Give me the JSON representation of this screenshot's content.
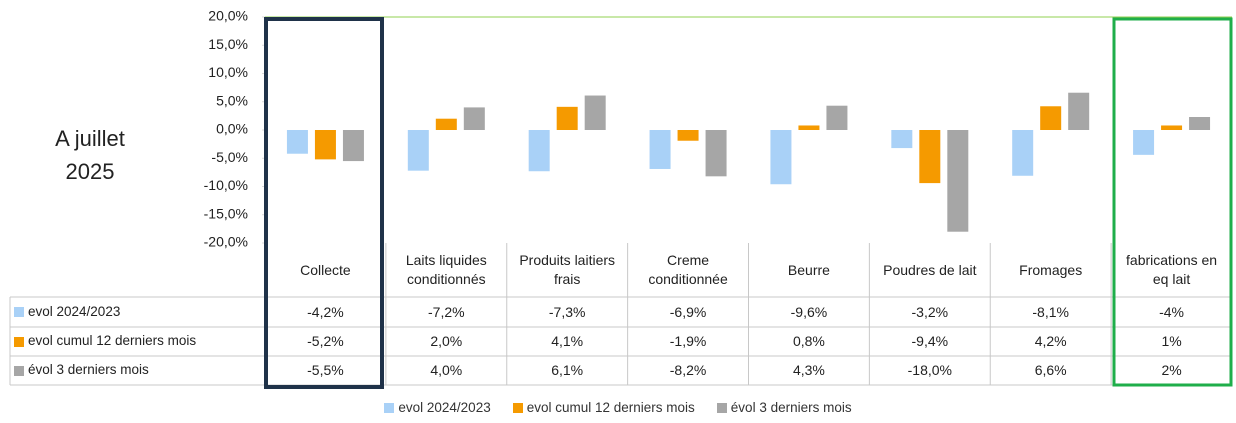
{
  "chart_data": {
    "type": "bar",
    "annotation": "A juillet 2025",
    "categories": [
      "Collecte",
      "Laits liquides conditionnés",
      "Produits laitiers frais",
      "Creme conditionnée",
      "Beurre",
      "Poudres de lait",
      "Fromages",
      "fabrications en eq lait"
    ],
    "series": [
      {
        "name": "evol 2024/2023",
        "color": "#a9d1f7",
        "values": [
          -4.2,
          -7.2,
          -7.3,
          -6.9,
          -9.6,
          -3.2,
          -8.1,
          -4.4
        ],
        "value_labels": [
          "-4,2%",
          "-7,2%",
          "-7,3%",
          "-6,9%",
          "-9,6%",
          "-3,2%",
          "-8,1%",
          "-4%"
        ]
      },
      {
        "name": "evol cumul  12 derniers mois",
        "color": "#f59a00",
        "values": [
          -5.2,
          2.0,
          4.1,
          -1.9,
          0.8,
          -9.4,
          4.2,
          0.8
        ],
        "value_labels": [
          "-5,2%",
          "2,0%",
          "4,1%",
          "-1,9%",
          "0,8%",
          "-9,4%",
          "4,2%",
          "1%"
        ]
      },
      {
        "name": "évol 3 derniers mois",
        "color": "#a6a6a6",
        "values": [
          -5.5,
          4.0,
          6.1,
          -8.2,
          4.3,
          -18.0,
          6.6,
          2.3
        ],
        "value_labels": [
          "-5,5%",
          "4,0%",
          "6,1%",
          "-8,2%",
          "4,3%",
          "-18,0%",
          "6,6%",
          "2%"
        ]
      }
    ],
    "ylim": [
      -20,
      20
    ],
    "yticks": [
      {
        "value": 20,
        "label": "20,0%"
      },
      {
        "value": 15,
        "label": "15,0%"
      },
      {
        "value": 10,
        "label": "10,0%"
      },
      {
        "value": 5,
        "label": "5,0%"
      },
      {
        "value": 0,
        "label": "0,0%"
      },
      {
        "value": -5,
        "label": "-5,0%"
      },
      {
        "value": -10,
        "label": "-10,0%"
      },
      {
        "value": -15,
        "label": "-15,0%"
      },
      {
        "value": -20,
        "label": "-20,0%"
      }
    ],
    "grid": false,
    "legend": "bottom"
  }
}
